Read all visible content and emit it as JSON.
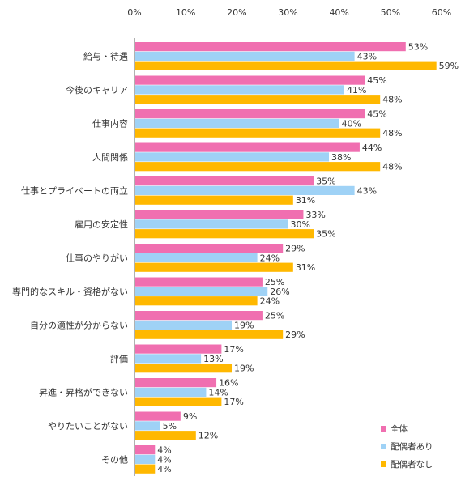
{
  "chart_data": {
    "type": "bar",
    "orientation": "horizontal",
    "categories": [
      "給与・待遇",
      "今後のキャリア",
      "仕事内容",
      "人間関係",
      "仕事とプライベートの両立",
      "雇用の安定性",
      "仕事のやりがい",
      "専門的なスキル・資格がない",
      "自分の適性が分からない",
      "評価",
      "昇進・昇格ができない",
      "やりたいことがない",
      "その他"
    ],
    "series": [
      {
        "name": "全体",
        "color": "#f06fb0",
        "values": [
          53,
          45,
          45,
          44,
          35,
          33,
          29,
          25,
          25,
          17,
          16,
          9,
          4
        ]
      },
      {
        "name": "配偶者あり",
        "color": "#9fd2f6",
        "values": [
          43,
          41,
          40,
          38,
          43,
          30,
          24,
          26,
          19,
          13,
          14,
          5,
          4
        ]
      },
      {
        "name": "配偶者なし",
        "color": "#ffb800",
        "values": [
          59,
          48,
          48,
          48,
          31,
          35,
          31,
          24,
          29,
          19,
          17,
          12,
          4
        ]
      }
    ],
    "value_suffix": "%",
    "xlim": [
      0,
      60
    ],
    "x_ticks": [
      "0%",
      "10%",
      "20%",
      "30%",
      "40%",
      "50%",
      "60%"
    ],
    "x_axis_position": "top",
    "grid": false,
    "legend_position": "bottom-right"
  }
}
